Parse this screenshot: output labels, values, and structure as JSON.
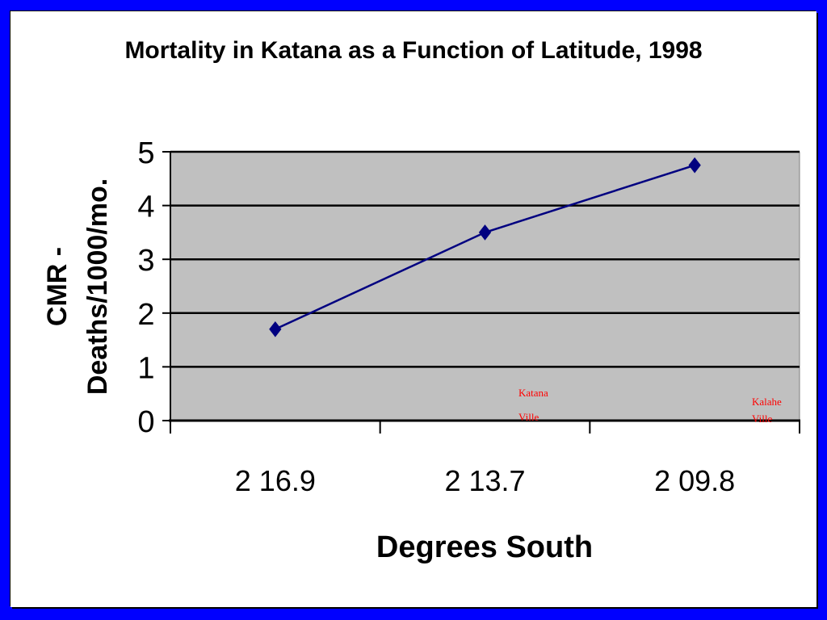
{
  "colors": {
    "border": "#0000ff",
    "plot_background": "#c0c0c0",
    "series_line": "#000080",
    "annotation": "#ff0000",
    "gridline": "#000000"
  },
  "chart_data": {
    "type": "line",
    "title": "Mortality in Katana as a Function of Latitude, 1998",
    "xlabel": "Degrees South",
    "ylabel_line1": "CMR -",
    "ylabel_line2": "Deaths/1000/mo.",
    "categories": [
      "2 16.9",
      "2 13.7",
      "2 09.8"
    ],
    "series": [
      {
        "values": [
          1.7,
          3.5,
          4.75
        ]
      }
    ],
    "ylim": [
      0,
      5
    ],
    "yticks": [
      "0",
      "1",
      "2",
      "3",
      "4",
      "5"
    ],
    "grid": true,
    "marker": "diamond",
    "annotations": [
      {
        "category_index": 1,
        "lines": [
          "Katana",
          "Ville"
        ]
      },
      {
        "category_index": 2,
        "lines": [
          "Kalahe",
          "Ville"
        ]
      }
    ]
  }
}
